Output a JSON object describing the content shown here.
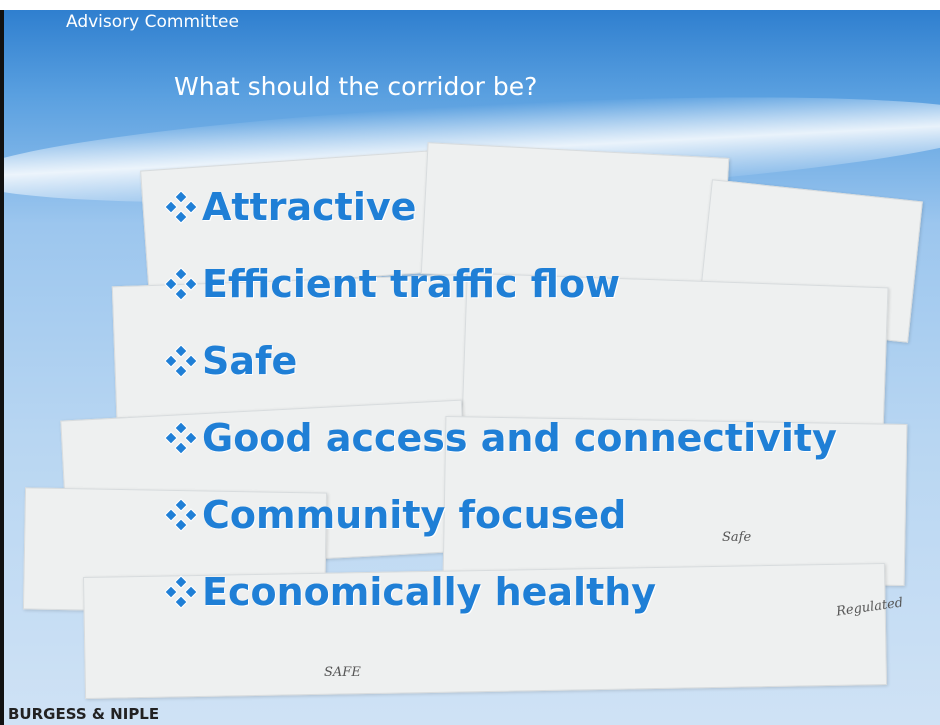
{
  "header": {
    "section": "Advisory Committee",
    "title": "What should the corridor be?"
  },
  "bullets": [
    "Attractive",
    "Efficient traffic flow",
    "Safe",
    "Good access and connectivity",
    "Community focused",
    "Economically healthy"
  ],
  "notes": [
    "Safe",
    "Regulated",
    "SAFE"
  ],
  "footer": {
    "company": "BURGESS & NIPLE"
  }
}
